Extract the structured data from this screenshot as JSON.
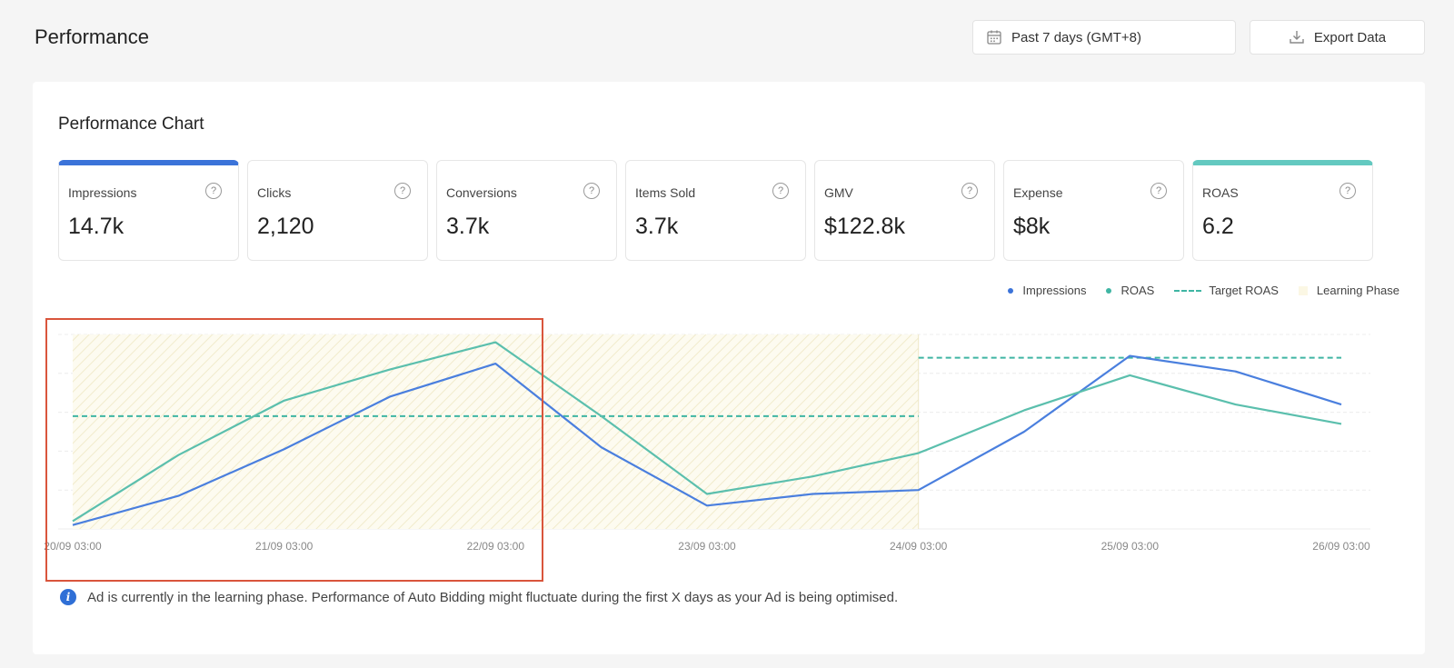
{
  "header": {
    "title": "Performance",
    "date_range": "Past 7 days (GMT+8)",
    "export_label": "Export Data"
  },
  "panel": {
    "title": "Performance Chart"
  },
  "metrics": [
    {
      "label": "Impressions",
      "value": "14.7k",
      "selected_color": "#3b73d9"
    },
    {
      "label": "Clicks",
      "value": "2,120"
    },
    {
      "label": "Conversions",
      "value": "3.7k"
    },
    {
      "label": "Items Sold",
      "value": "3.7k"
    },
    {
      "label": "GMV",
      "value": "$122.8k"
    },
    {
      "label": "Expense",
      "value": "$8k"
    },
    {
      "label": "ROAS",
      "value": "6.2",
      "selected_color": "#63c9c0"
    }
  ],
  "legend": {
    "impressions": "Impressions",
    "roas": "ROAS",
    "target_roas": "Target ROAS",
    "learning_phase": "Learning Phase"
  },
  "chart_data": {
    "type": "line",
    "x_tick_labels": [
      "20/09 03:00",
      "21/09 03:00",
      "22/09 03:00",
      "23/09 03:00",
      "24/09 03:00",
      "25/09 03:00",
      "26/09 03:00"
    ],
    "point_count": 13,
    "series": [
      {
        "name": "Impressions",
        "color": "#4a7fde",
        "values": [
          2,
          17,
          41,
          68,
          85,
          42,
          12,
          18,
          20,
          50,
          89,
          81,
          64
        ]
      },
      {
        "name": "ROAS",
        "color": "#5bbfad",
        "values": [
          4,
          38,
          66,
          82,
          96,
          58,
          18,
          27,
          39,
          61,
          79,
          64,
          54
        ]
      }
    ],
    "target_roas": [
      {
        "from_index": 0,
        "to_index": 8,
        "value": 58
      },
      {
        "from_index": 8,
        "to_index": 24,
        "value": 88
      }
    ],
    "learning_phase": {
      "from_index": 0,
      "to_index": 8
    },
    "ylim": [
      0,
      100
    ],
    "grid": true
  },
  "info_text": "Ad is currently in the learning phase. Performance of Auto Bidding might fluctuate during the first X days as your Ad is being optimised."
}
